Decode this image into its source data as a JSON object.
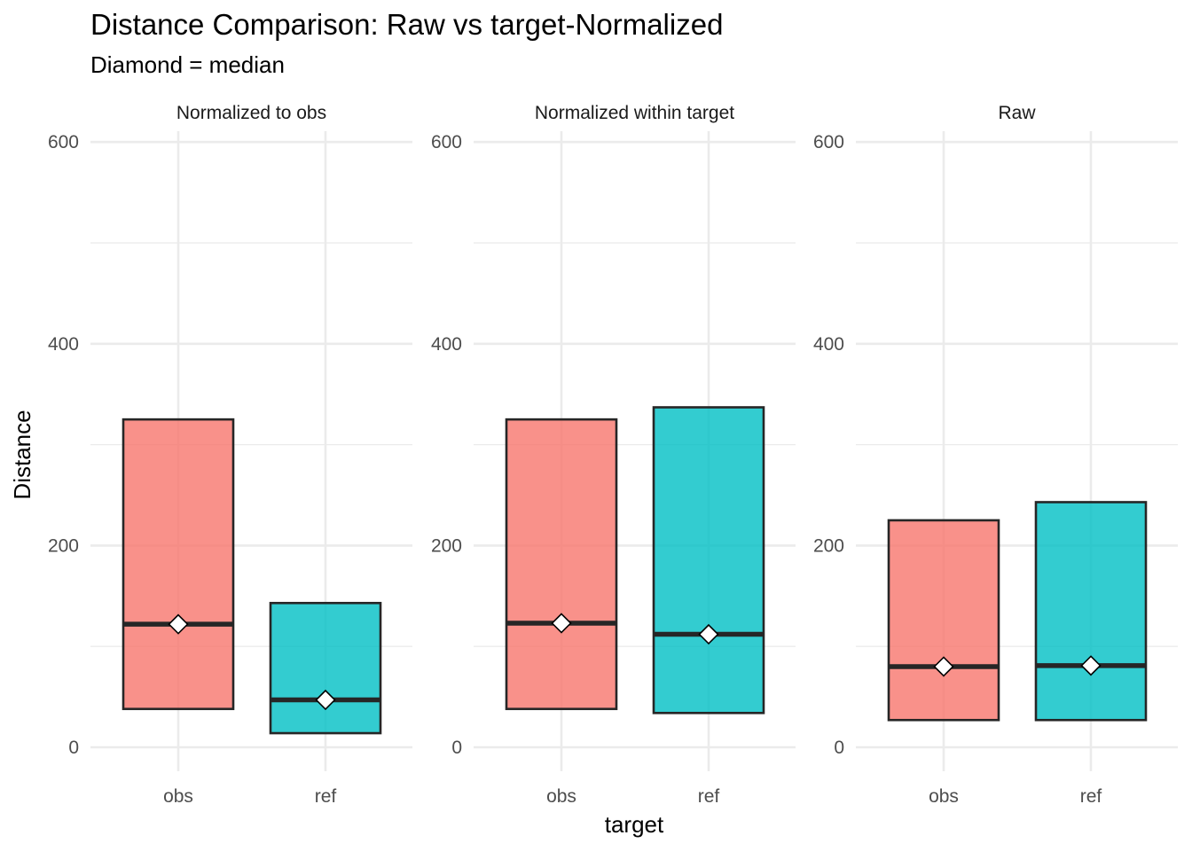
{
  "chart_data": {
    "type": "bar",
    "title": "Distance Comparison: Raw vs target-Normalized",
    "subtitle": "Diamond = median",
    "xlabel": "target",
    "ylabel": "Distance",
    "ylim": [
      -25,
      610
    ],
    "y_ticks": [
      0,
      200,
      400,
      600
    ],
    "y_minor_ticks": [
      100,
      300,
      500
    ],
    "grid": true,
    "legend": "none",
    "colors": {
      "obs": "#F8766D",
      "ref": "#00BFC4",
      "outline": "#262626"
    },
    "categories": [
      "obs",
      "ref"
    ],
    "panels": [
      {
        "label": "Normalized to obs",
        "bars": [
          {
            "category": "obs",
            "low": 38,
            "high": 325,
            "median": 122
          },
          {
            "category": "ref",
            "low": 14,
            "high": 143,
            "median": 47
          }
        ]
      },
      {
        "label": "Normalized within target",
        "bars": [
          {
            "category": "obs",
            "low": 38,
            "high": 325,
            "median": 123
          },
          {
            "category": "ref",
            "low": 34,
            "high": 337,
            "median": 112
          }
        ]
      },
      {
        "label": "Raw",
        "bars": [
          {
            "category": "obs",
            "low": 27,
            "high": 225,
            "median": 80
          },
          {
            "category": "ref",
            "low": 27,
            "high": 243,
            "median": 81
          }
        ]
      }
    ]
  }
}
